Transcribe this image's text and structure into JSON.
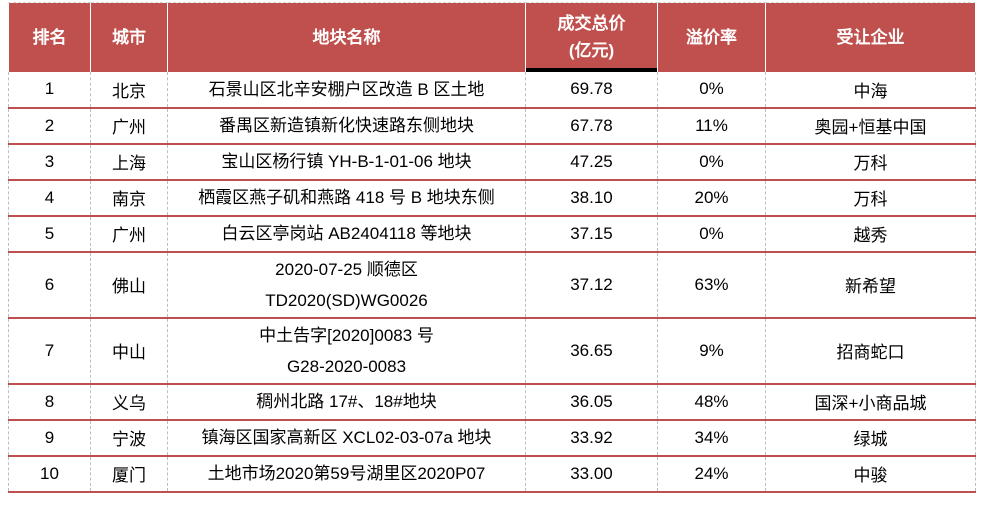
{
  "table": {
    "title_semantic": "land-transaction-ranking-table",
    "colors": {
      "header_bg": "#c0504d",
      "header_text": "#ffffff",
      "row_divider": "#c0504d",
      "body_text": "#000000",
      "column_dash": "#bdbdbd",
      "price_header_underline": "#000000"
    },
    "columns": [
      {
        "label": "排名"
      },
      {
        "label": "城市"
      },
      {
        "label": "地块名称"
      },
      {
        "label": "成交总价",
        "label2": "(亿元)"
      },
      {
        "label": "溢价率"
      },
      {
        "label": "受让企业"
      }
    ],
    "rows": [
      {
        "rank": "1",
        "city": "北京",
        "name_lines": [
          "石景山区北辛安棚户区改造 B 区土地"
        ],
        "price": "69.78",
        "premium": "0%",
        "company": "中海"
      },
      {
        "rank": "2",
        "city": "广州",
        "name_lines": [
          "番禺区新造镇新化快速路东侧地块"
        ],
        "price": "67.78",
        "premium": "11%",
        "company": "奥园+恒基中国"
      },
      {
        "rank": "3",
        "city": "上海",
        "name_lines": [
          "宝山区杨行镇 YH-B-1-01-06 地块"
        ],
        "price": "47.25",
        "premium": "0%",
        "company": "万科"
      },
      {
        "rank": "4",
        "city": "南京",
        "name_lines": [
          "栖霞区燕子矶和燕路 418 号 B 地块东侧"
        ],
        "price": "38.10",
        "premium": "20%",
        "company": "万科"
      },
      {
        "rank": "5",
        "city": "广州",
        "name_lines": [
          "白云区亭岗站 AB2404118 等地块"
        ],
        "price": "37.15",
        "premium": "0%",
        "company": "越秀"
      },
      {
        "rank": "6",
        "city": "佛山",
        "name_lines": [
          "2020-07-25 顺德区",
          "TD2020(SD)WG0026"
        ],
        "price": "37.12",
        "premium": "63%",
        "company": "新希望"
      },
      {
        "rank": "7",
        "city": "中山",
        "name_lines": [
          "中土告字[2020]0083 号",
          "G28-2020-0083"
        ],
        "price": "36.65",
        "premium": "9%",
        "company": "招商蛇口"
      },
      {
        "rank": "8",
        "city": "义乌",
        "name_lines": [
          "稠州北路 17#、18#地块"
        ],
        "price": "36.05",
        "premium": "48%",
        "company": "国深+小商品城"
      },
      {
        "rank": "9",
        "city": "宁波",
        "name_lines": [
          "镇海区国家高新区 XCL02-03-07a 地块"
        ],
        "price": "33.92",
        "premium": "34%",
        "company": "绿城"
      },
      {
        "rank": "10",
        "city": "厦门",
        "name_lines": [
          "土地市场2020第59号湖里区2020P07"
        ],
        "price": "33.00",
        "premium": "24%",
        "company": "中骏"
      }
    ]
  }
}
